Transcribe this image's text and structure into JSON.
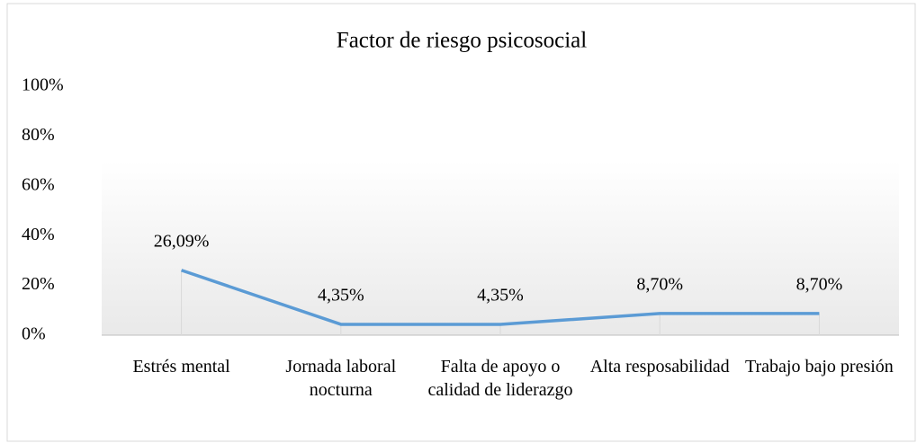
{
  "chart_data": {
    "type": "line",
    "title": "Factor de riesgo psicosocial",
    "categories": [
      "Estrés mental",
      "Jornada laboral nocturna",
      "Falta de apoyo o calidad de liderazgo",
      "Alta resposabilidad",
      "Trabajo bajo presión"
    ],
    "series": [
      {
        "name": "Factor de riesgo psicosocial",
        "color": "#5b9bd5",
        "values": [
          26.09,
          4.35,
          4.35,
          8.7,
          8.7
        ],
        "value_labels": [
          "26,09%",
          "4,35%",
          "4,35%",
          "8,70%",
          "8,70%"
        ]
      }
    ],
    "ylim": [
      0,
      100
    ],
    "yticks": [
      {
        "value": 0,
        "label": "0%"
      },
      {
        "value": 20,
        "label": "20%"
      },
      {
        "value": 40,
        "label": "40%"
      },
      {
        "value": 60,
        "label": "60%"
      },
      {
        "value": 80,
        "label": "80%"
      },
      {
        "value": 100,
        "label": "100%"
      }
    ],
    "grid": false
  }
}
